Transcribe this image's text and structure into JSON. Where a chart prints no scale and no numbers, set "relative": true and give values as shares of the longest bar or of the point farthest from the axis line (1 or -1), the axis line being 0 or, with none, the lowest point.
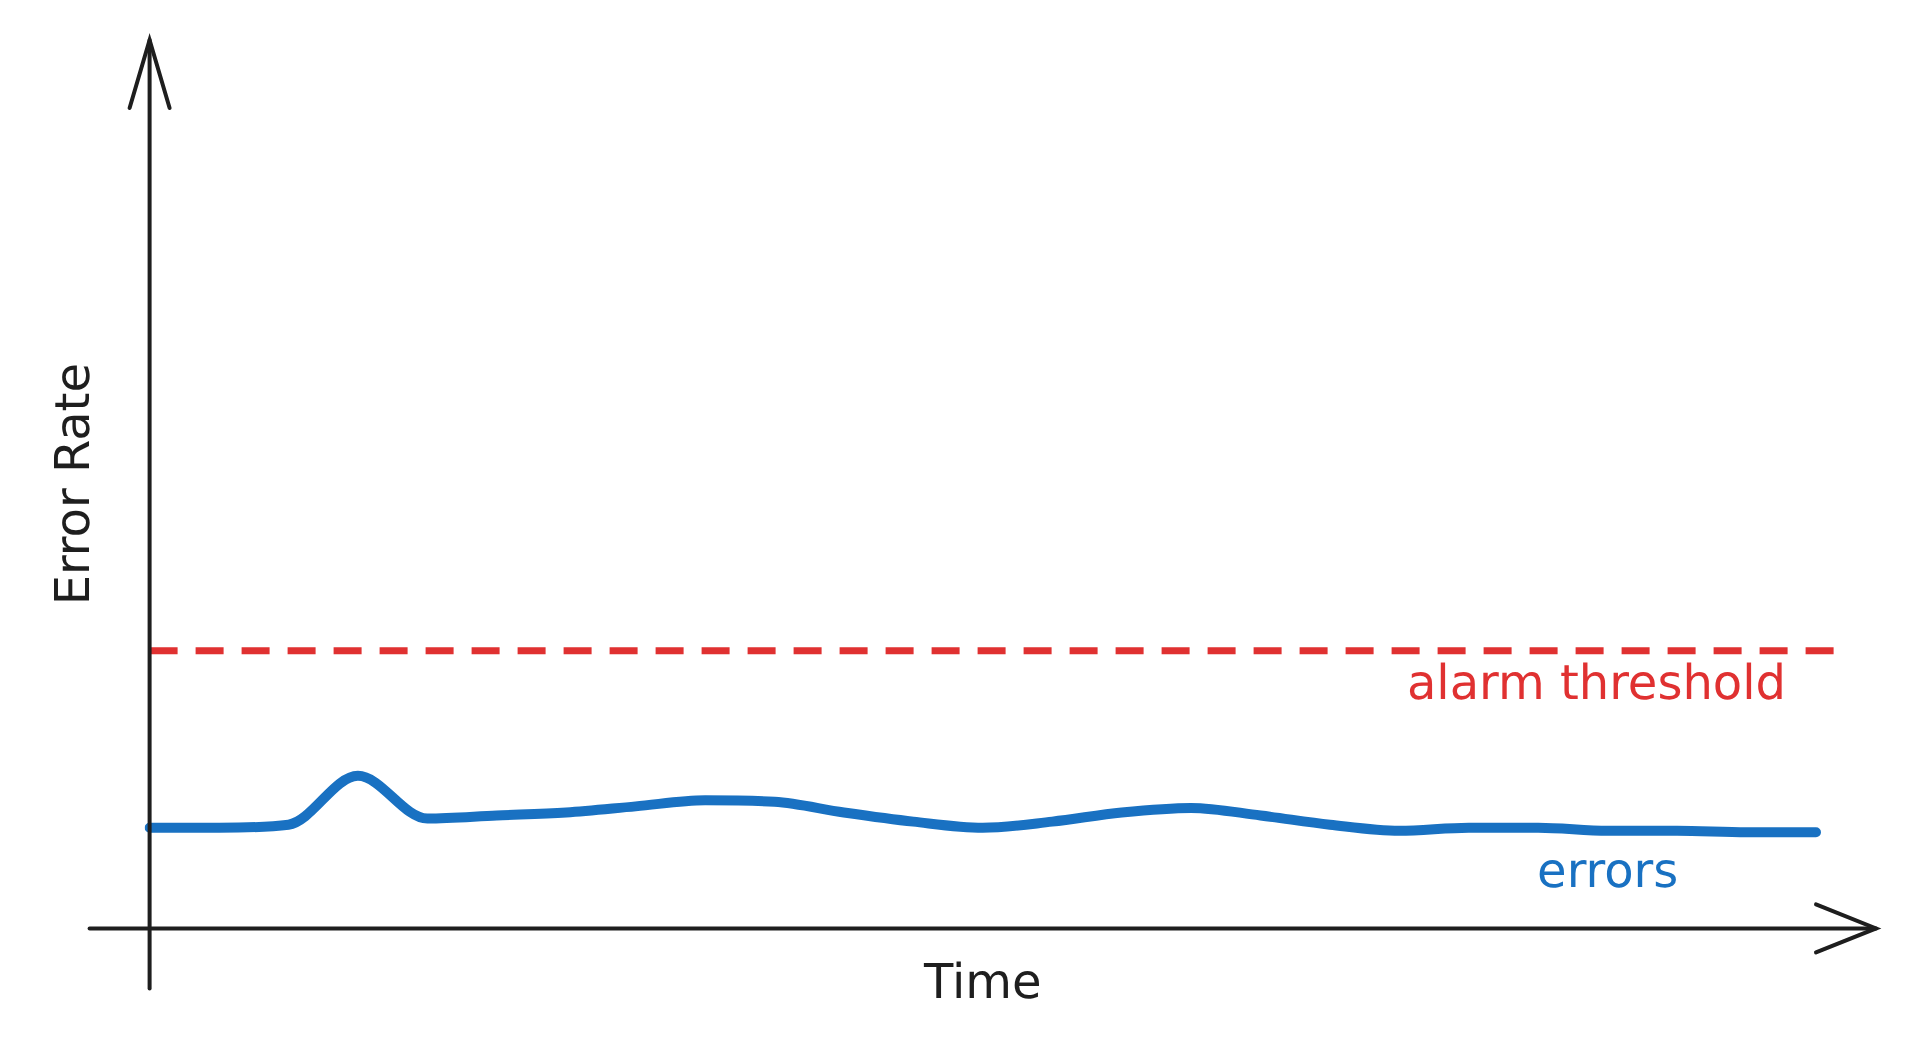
{
  "chart_data": {
    "type": "line",
    "relative": true,
    "xlabel": "Time",
    "ylabel": "Error Rate",
    "categories": [
      null,
      null,
      null,
      null,
      null,
      null,
      null,
      null,
      null,
      null,
      null,
      null,
      null,
      null,
      null,
      null,
      null,
      null,
      null,
      null,
      null,
      null,
      null,
      null,
      null
    ],
    "series": [
      {
        "name": "errors",
        "color": "#1971c2",
        "values": [
          0.66,
          0.66,
          0.68,
          1,
          0.72,
          0.74,
          0.76,
          0.8,
          0.84,
          0.83,
          0.76,
          0.7,
          0.66,
          0.7,
          0.76,
          0.79,
          0.74,
          0.68,
          0.64,
          0.66,
          0.66,
          0.64,
          0.64,
          0.63,
          0.63
        ]
      }
    ],
    "ref_lines": [
      {
        "axis": "y",
        "value": 1.82,
        "label": "alarm threshold",
        "color": "#e03131",
        "line_style": "dashed"
      }
    ],
    "marker": "none",
    "grid": false,
    "legend": false
  }
}
